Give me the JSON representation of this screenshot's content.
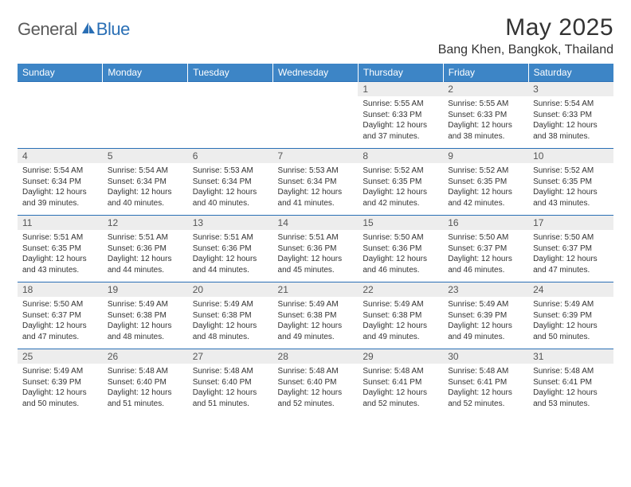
{
  "brand": {
    "text1": "General",
    "text2": "Blue"
  },
  "title": "May 2025",
  "location": "Bang Khen, Bangkok, Thailand",
  "colors": {
    "header_bg": "#3d85c6",
    "header_text": "#ffffff",
    "rule": "#2a6fb5",
    "daynum_bg": "#ededed",
    "brand_gray": "#5a5a5a",
    "brand_blue": "#2a6fb5"
  },
  "typography": {
    "title_fontsize": 30,
    "location_fontsize": 16,
    "weekday_fontsize": 12,
    "daynum_fontsize": 12,
    "detail_fontsize": 10
  },
  "weekdays": [
    "Sunday",
    "Monday",
    "Tuesday",
    "Wednesday",
    "Thursday",
    "Friday",
    "Saturday"
  ],
  "weeks": [
    [
      null,
      null,
      null,
      null,
      {
        "n": "1",
        "sr": "5:55 AM",
        "ss": "6:33 PM",
        "dl": "12 hours and 37 minutes."
      },
      {
        "n": "2",
        "sr": "5:55 AM",
        "ss": "6:33 PM",
        "dl": "12 hours and 38 minutes."
      },
      {
        "n": "3",
        "sr": "5:54 AM",
        "ss": "6:33 PM",
        "dl": "12 hours and 38 minutes."
      }
    ],
    [
      {
        "n": "4",
        "sr": "5:54 AM",
        "ss": "6:34 PM",
        "dl": "12 hours and 39 minutes."
      },
      {
        "n": "5",
        "sr": "5:54 AM",
        "ss": "6:34 PM",
        "dl": "12 hours and 40 minutes."
      },
      {
        "n": "6",
        "sr": "5:53 AM",
        "ss": "6:34 PM",
        "dl": "12 hours and 40 minutes."
      },
      {
        "n": "7",
        "sr": "5:53 AM",
        "ss": "6:34 PM",
        "dl": "12 hours and 41 minutes."
      },
      {
        "n": "8",
        "sr": "5:52 AM",
        "ss": "6:35 PM",
        "dl": "12 hours and 42 minutes."
      },
      {
        "n": "9",
        "sr": "5:52 AM",
        "ss": "6:35 PM",
        "dl": "12 hours and 42 minutes."
      },
      {
        "n": "10",
        "sr": "5:52 AM",
        "ss": "6:35 PM",
        "dl": "12 hours and 43 minutes."
      }
    ],
    [
      {
        "n": "11",
        "sr": "5:51 AM",
        "ss": "6:35 PM",
        "dl": "12 hours and 43 minutes."
      },
      {
        "n": "12",
        "sr": "5:51 AM",
        "ss": "6:36 PM",
        "dl": "12 hours and 44 minutes."
      },
      {
        "n": "13",
        "sr": "5:51 AM",
        "ss": "6:36 PM",
        "dl": "12 hours and 44 minutes."
      },
      {
        "n": "14",
        "sr": "5:51 AM",
        "ss": "6:36 PM",
        "dl": "12 hours and 45 minutes."
      },
      {
        "n": "15",
        "sr": "5:50 AM",
        "ss": "6:36 PM",
        "dl": "12 hours and 46 minutes."
      },
      {
        "n": "16",
        "sr": "5:50 AM",
        "ss": "6:37 PM",
        "dl": "12 hours and 46 minutes."
      },
      {
        "n": "17",
        "sr": "5:50 AM",
        "ss": "6:37 PM",
        "dl": "12 hours and 47 minutes."
      }
    ],
    [
      {
        "n": "18",
        "sr": "5:50 AM",
        "ss": "6:37 PM",
        "dl": "12 hours and 47 minutes."
      },
      {
        "n": "19",
        "sr": "5:49 AM",
        "ss": "6:38 PM",
        "dl": "12 hours and 48 minutes."
      },
      {
        "n": "20",
        "sr": "5:49 AM",
        "ss": "6:38 PM",
        "dl": "12 hours and 48 minutes."
      },
      {
        "n": "21",
        "sr": "5:49 AM",
        "ss": "6:38 PM",
        "dl": "12 hours and 49 minutes."
      },
      {
        "n": "22",
        "sr": "5:49 AM",
        "ss": "6:38 PM",
        "dl": "12 hours and 49 minutes."
      },
      {
        "n": "23",
        "sr": "5:49 AM",
        "ss": "6:39 PM",
        "dl": "12 hours and 49 minutes."
      },
      {
        "n": "24",
        "sr": "5:49 AM",
        "ss": "6:39 PM",
        "dl": "12 hours and 50 minutes."
      }
    ],
    [
      {
        "n": "25",
        "sr": "5:49 AM",
        "ss": "6:39 PM",
        "dl": "12 hours and 50 minutes."
      },
      {
        "n": "26",
        "sr": "5:48 AM",
        "ss": "6:40 PM",
        "dl": "12 hours and 51 minutes."
      },
      {
        "n": "27",
        "sr": "5:48 AM",
        "ss": "6:40 PM",
        "dl": "12 hours and 51 minutes."
      },
      {
        "n": "28",
        "sr": "5:48 AM",
        "ss": "6:40 PM",
        "dl": "12 hours and 52 minutes."
      },
      {
        "n": "29",
        "sr": "5:48 AM",
        "ss": "6:41 PM",
        "dl": "12 hours and 52 minutes."
      },
      {
        "n": "30",
        "sr": "5:48 AM",
        "ss": "6:41 PM",
        "dl": "12 hours and 52 minutes."
      },
      {
        "n": "31",
        "sr": "5:48 AM",
        "ss": "6:41 PM",
        "dl": "12 hours and 53 minutes."
      }
    ]
  ],
  "labels": {
    "sunrise": "Sunrise:",
    "sunset": "Sunset:",
    "daylight": "Daylight:"
  }
}
